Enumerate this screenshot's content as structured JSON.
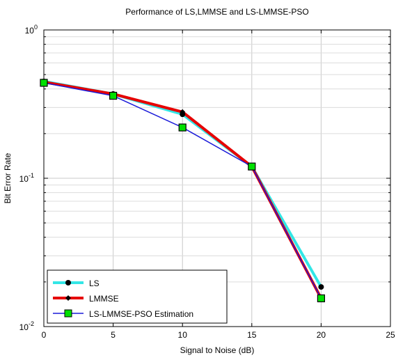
{
  "chart_data": {
    "type": "line",
    "title": "Performance of LS,LMMSE and LS-LMMSE-PSO",
    "xlabel": "Signal to Noise (dB)",
    "ylabel": "Bit Error Rate",
    "xlim": [
      0,
      25
    ],
    "ylim": [
      0.01,
      1
    ],
    "yscale": "log",
    "grid": true,
    "legend_position": "bottom-left",
    "x_ticks": [
      "0",
      "5",
      "10",
      "15",
      "20",
      "25"
    ],
    "y_ticks": [
      {
        "base": "10",
        "exp": "0"
      },
      {
        "base": "10",
        "exp": "-1"
      },
      {
        "base": "10",
        "exp": "-2"
      }
    ],
    "x": [
      0,
      5,
      10,
      15,
      20
    ],
    "series": [
      {
        "name": "LS",
        "values": [
          0.45,
          0.37,
          0.27,
          0.12,
          0.0185
        ],
        "color": "#33e6e6",
        "marker": "circle"
      },
      {
        "name": "LMMSE",
        "values": [
          0.445,
          0.37,
          0.28,
          0.12,
          0.0155
        ],
        "color": "#e60000",
        "marker": "diamond"
      },
      {
        "name": "LS-LMMSE-PSO Estimation",
        "values": [
          0.44,
          0.36,
          0.22,
          0.12,
          0.0155
        ],
        "color": "#1a1ad9",
        "marker": "square",
        "marker_fill": "#00e000"
      }
    ]
  }
}
